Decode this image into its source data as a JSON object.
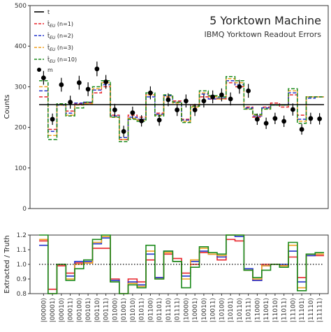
{
  "chart_data": [
    {
      "type": "step",
      "title": "5 Yorktown Machine",
      "subtitle": "IBMQ Yorktown Readout Errors",
      "xlabel": "",
      "ylabel": "Counts",
      "ylim": [
        0,
        500
      ],
      "yticks": [
        0,
        100,
        200,
        300,
        400,
        500
      ],
      "grid": false,
      "legend_position": "top-left",
      "categories": [
        "|00000⟩",
        "|00001⟩",
        "|00010⟩",
        "|00011⟩",
        "|00100⟩",
        "|00101⟩",
        "|00110⟩",
        "|00111⟩",
        "|01000⟩",
        "|01001⟩",
        "|01010⟩",
        "|01011⟩",
        "|01100⟩",
        "|01101⟩",
        "|01110⟩",
        "|01111⟩",
        "|10000⟩",
        "|10001⟩",
        "|10010⟩",
        "|10011⟩",
        "|10100⟩",
        "|10101⟩",
        "|10110⟩",
        "|10111⟩",
        "|11000⟩",
        "|11001⟩",
        "|11010⟩",
        "|11011⟩",
        "|11100⟩",
        "|11101⟩",
        "|11110⟩",
        "|11111⟩"
      ],
      "truth": {
        "name": "t",
        "value": 256,
        "color": "#000000"
      },
      "series": [
        {
          "name": "t̂_EU (n=1)",
          "color": "#e8232a",
          "values": [
            275,
            195,
            255,
            240,
            258,
            260,
            285,
            300,
            230,
            170,
            230,
            225,
            280,
            235,
            275,
            265,
            220,
            255,
            275,
            270,
            270,
            310,
            300,
            250,
            225,
            250,
            260,
            250,
            280,
            230,
            275,
            275
          ]
        },
        {
          "name": "t̂_EU (n=2)",
          "color": "#2233cc",
          "values": [
            290,
            190,
            255,
            235,
            260,
            262,
            292,
            305,
            228,
            175,
            225,
            220,
            275,
            232,
            278,
            262,
            218,
            252,
            282,
            270,
            272,
            315,
            305,
            248,
            228,
            248,
            255,
            255,
            285,
            220,
            272,
            275
          ]
        },
        {
          "name": "t̂_EU (n=3)",
          "color": "#f0a020",
          "values": [
            300,
            180,
            255,
            230,
            255,
            258,
            295,
            310,
            225,
            170,
            222,
            218,
            280,
            230,
            276,
            260,
            215,
            250,
            285,
            275,
            270,
            320,
            310,
            245,
            230,
            245,
            255,
            255,
            290,
            215,
            275,
            275
          ]
        },
        {
          "name": "t̂_EU (n=10)",
          "color": "#1a8a1a",
          "values": [
            315,
            170,
            258,
            228,
            248,
            262,
            300,
            315,
            225,
            165,
            220,
            215,
            285,
            228,
            280,
            262,
            212,
            252,
            290,
            278,
            275,
            325,
            315,
            245,
            232,
            245,
            255,
            255,
            295,
            210,
            275,
            275
          ]
        }
      ],
      "measured": {
        "name": "m",
        "color": "#000000",
        "values": [
          322,
          220,
          305,
          262,
          310,
          294,
          344,
          312,
          243,
          190,
          236,
          216,
          285,
          218,
          268,
          243,
          265,
          243,
          265,
          275,
          280,
          270,
          300,
          290,
          220,
          210,
          222,
          215,
          244,
          195,
          222,
          221
        ],
        "errors": [
          17,
          14,
          17,
          16,
          17,
          17,
          18,
          17,
          15,
          14,
          15,
          14,
          16,
          14,
          16,
          15,
          16,
          15,
          16,
          16,
          16,
          16,
          17,
          17,
          14,
          14,
          14,
          14,
          15,
          13,
          14,
          14
        ]
      }
    },
    {
      "type": "step",
      "xlabel": "",
      "ylabel": "Extracted / Truth",
      "ylim": [
        0.8,
        1.2
      ],
      "yticks": [
        "0.8",
        "0.9",
        "1.0",
        "1.1",
        "1.2"
      ],
      "reference_line": 1.0,
      "series": [
        {
          "name": "t̂_EU (n=1)",
          "color": "#e8232a",
          "values": [
            1.16,
            0.83,
            0.99,
            0.94,
            1.01,
            1.01,
            1.11,
            1.11,
            0.9,
            0.78,
            0.9,
            0.88,
            1.03,
            0.91,
            1.07,
            1.04,
            0.94,
            1.0,
            1.08,
            1.07,
            1.03,
            1.17,
            1.16,
            0.97,
            0.89,
            1.0,
            1.0,
            0.99,
            1.05,
            0.91,
            1.06,
            1.06
          ]
        },
        {
          "name": "t̂_EU (n=2)",
          "color": "#2233cc",
          "values": [
            1.13,
            0.74,
            1.0,
            0.92,
            1.02,
            1.02,
            1.14,
            1.18,
            0.89,
            0.68,
            0.88,
            0.86,
            1.07,
            0.91,
            1.09,
            1.02,
            0.92,
            1.02,
            1.09,
            1.07,
            1.05,
            1.23,
            1.19,
            0.97,
            0.89,
            0.99,
            1.0,
            1.0,
            1.09,
            0.88,
            1.06,
            1.07
          ]
        },
        {
          "name": "t̂_EU (n=3)",
          "color": "#f0a020",
          "values": [
            1.17,
            0.7,
            1.0,
            0.9,
            1.0,
            1.01,
            1.15,
            1.19,
            0.88,
            0.66,
            0.87,
            0.85,
            1.09,
            0.9,
            1.08,
            1.02,
            0.9,
            1.03,
            1.11,
            1.07,
            1.06,
            1.25,
            1.21,
            0.96,
            0.9,
            0.99,
            1.0,
            0.99,
            1.13,
            0.84,
            1.07,
            1.07
          ]
        },
        {
          "name": "t̂_EU (n=10)",
          "color": "#1a8a1a",
          "values": [
            1.23,
            0.66,
            1.0,
            0.89,
            0.97,
            1.03,
            1.17,
            1.2,
            0.88,
            0.65,
            0.86,
            0.84,
            1.13,
            0.9,
            1.09,
            1.02,
            0.84,
            0.98,
            1.12,
            1.08,
            1.07,
            1.27,
            1.23,
            0.96,
            0.91,
            0.96,
            1.0,
            0.98,
            1.15,
            0.82,
            1.07,
            1.08
          ]
        }
      ]
    }
  ],
  "legend": {
    "items": [
      {
        "label": "t",
        "color": "#000000",
        "style": "solid"
      },
      {
        "label": "t̂",
        "sub": "EU",
        "suffix": " (n=1)",
        "color": "#e8232a",
        "style": "dash"
      },
      {
        "label": "t̂",
        "sub": "EU",
        "suffix": " (n=2)",
        "color": "#2233cc",
        "style": "dash"
      },
      {
        "label": "t̂",
        "sub": "EU",
        "suffix": " (n=3)",
        "color": "#f0a020",
        "style": "dash"
      },
      {
        "label": "t̂",
        "sub": "EU",
        "suffix": " (n=10)",
        "color": "#1a8a1a",
        "style": "dash"
      },
      {
        "label": "m",
        "color": "#000000",
        "style": "point"
      }
    ]
  }
}
